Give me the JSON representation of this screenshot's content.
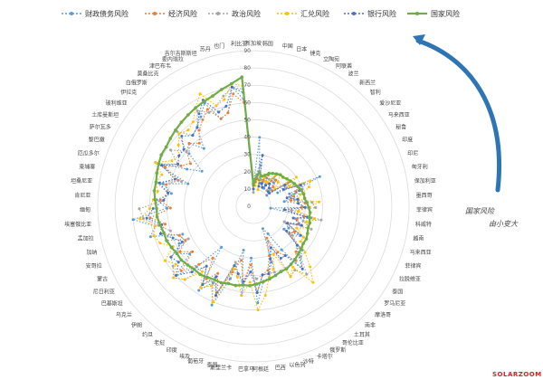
{
  "legend": [
    "财政债务风险",
    "经济风险",
    "政治风险",
    "汇兑风险",
    "银行风险",
    "国家风险"
  ],
  "side_note": [
    "国家风险",
    "由小变大"
  ],
  "watermark": "SOLARZOOM",
  "colors": {
    "series": [
      "#5b9bd5",
      "#ed7d31",
      "#a5a5a5",
      "#ffc000",
      "#4472c4",
      "#70ad47"
    ],
    "grid": "#dcdcdc",
    "arrow": "#2e75b6"
  },
  "chart_data": {
    "type": "radar",
    "rmax": 90,
    "ticks": [
      0,
      10,
      20,
      30,
      40,
      50,
      60,
      70,
      80,
      90
    ],
    "categories": [
      "新加坡",
      "韩国",
      "中国",
      "日本",
      "捷克",
      "立陶宛",
      "阿联酋",
      "波兰",
      "新西兰",
      "智利",
      "爱沙尼亚",
      "马来西亚",
      "秘鲁",
      "印度",
      "印尼",
      "匈牙利",
      "保加利亚",
      "墨西哥",
      "菲律宾",
      "科威特",
      "越南",
      "马来西亚",
      "菲律宾",
      "拉脱维亚",
      "泰国",
      "罗马尼亚",
      "摩洛哥",
      "南非",
      "土耳其",
      "哥伦比亚",
      "俄罗斯",
      "卡塔尔",
      "沙特",
      "以色列",
      "巴西",
      "阿根廷",
      "巴拿马",
      "斯里兰卡",
      "泰国",
      "葡萄牙",
      "埃及",
      "印度",
      "老挝",
      "约旦",
      "伊朗",
      "乌克兰",
      "巴基斯坦",
      "尼日利亚",
      "蒙古",
      "安哥拉",
      "加纳",
      "孟加拉",
      "埃塞俄比亚",
      "缅甸",
      "肯尼亚",
      "坦桑尼亚",
      "柬埔寨",
      "厄瓜多尔",
      "黎巴嫩",
      "萨尔瓦多",
      "土库曼斯坦",
      "玻利维亚",
      "伊拉克",
      "白俄罗斯",
      "莫桑比克",
      "津巴布韦",
      "委内瑞拉",
      "吉尔吉斯斯坦",
      "苏丹",
      "也门",
      "利比亚"
    ],
    "series": [
      {
        "name": "财政债务风险",
        "values": [
          12,
          40,
          20,
          14,
          15,
          18,
          12,
          22,
          18,
          14,
          10,
          26,
          16,
          42,
          22,
          30,
          18,
          26,
          28,
          10,
          34,
          26,
          28,
          20,
          24,
          22,
          38,
          40,
          46,
          30,
          18,
          14,
          34,
          42,
          44,
          56,
          30,
          52,
          26,
          44,
          62,
          50,
          58,
          30,
          48,
          60,
          46,
          52,
          48,
          44,
          62,
          58,
          70,
          50,
          56,
          48,
          54,
          40,
          62,
          44,
          36,
          48,
          52,
          44,
          56,
          60,
          66,
          54,
          56,
          70,
          62
        ]
      },
      {
        "name": "经济风险",
        "values": [
          10,
          14,
          16,
          12,
          16,
          20,
          14,
          18,
          20,
          16,
          14,
          24,
          20,
          30,
          26,
          24,
          22,
          30,
          28,
          18,
          30,
          26,
          30,
          22,
          28,
          26,
          34,
          36,
          40,
          34,
          30,
          20,
          30,
          38,
          40,
          50,
          34,
          44,
          32,
          40,
          54,
          44,
          50,
          38,
          46,
          56,
          44,
          50,
          44,
          46,
          56,
          52,
          60,
          48,
          54,
          50,
          52,
          46,
          56,
          48,
          44,
          50,
          52,
          48,
          54,
          58,
          62,
          54,
          56,
          66,
          60
        ]
      },
      {
        "name": "政治风险",
        "values": [
          8,
          18,
          24,
          16,
          14,
          16,
          18,
          20,
          12,
          14,
          12,
          26,
          22,
          32,
          30,
          22,
          24,
          34,
          36,
          22,
          40,
          30,
          36,
          20,
          34,
          28,
          36,
          40,
          50,
          44,
          46,
          22,
          40,
          40,
          40,
          42,
          38,
          46,
          40,
          34,
          56,
          48,
          54,
          44,
          58,
          62,
          58,
          56,
          42,
          54,
          50,
          56,
          64,
          66,
          52,
          50,
          58,
          44,
          60,
          50,
          58,
          50,
          62,
          54,
          56,
          64,
          60,
          62,
          66,
          70,
          68
        ]
      },
      {
        "name": "汇兑风险",
        "values": [
          14,
          12,
          20,
          10,
          18,
          16,
          16,
          22,
          24,
          20,
          16,
          30,
          24,
          36,
          34,
          28,
          26,
          38,
          32,
          26,
          36,
          32,
          34,
          28,
          34,
          34,
          40,
          48,
          56,
          42,
          46,
          30,
          38,
          42,
          52,
          60,
          44,
          52,
          42,
          38,
          60,
          52,
          56,
          48,
          58,
          62,
          56,
          60,
          52,
          58,
          60,
          58,
          66,
          60,
          58,
          56,
          58,
          56,
          62,
          54,
          52,
          56,
          60,
          58,
          60,
          66,
          72,
          62,
          64,
          72,
          70
        ]
      },
      {
        "name": "银行风险",
        "values": [
          10,
          16,
          30,
          12,
          14,
          12,
          14,
          16,
          14,
          12,
          12,
          22,
          20,
          30,
          28,
          20,
          26,
          26,
          30,
          18,
          32,
          24,
          30,
          22,
          32,
          24,
          34,
          38,
          46,
          34,
          34,
          26,
          32,
          40,
          40,
          50,
          38,
          44,
          40,
          36,
          56,
          46,
          54,
          44,
          52,
          60,
          54,
          56,
          46,
          50,
          56,
          54,
          62,
          58,
          52,
          50,
          56,
          48,
          58,
          50,
          52,
          52,
          58,
          54,
          56,
          62,
          68,
          58,
          60,
          70,
          66
        ]
      },
      {
        "name": "国家风险",
        "values": [
          13,
          16,
          20,
          18,
          19,
          21,
          22,
          23,
          24,
          24,
          25,
          26,
          27,
          28,
          29,
          30,
          30,
          31,
          32,
          33,
          33,
          34,
          34,
          35,
          36,
          36,
          37,
          38,
          39,
          40,
          41,
          41,
          42,
          43,
          44,
          45,
          46,
          46,
          47,
          47,
          48,
          48,
          49,
          50,
          50,
          51,
          52,
          52,
          53,
          54,
          54,
          55,
          56,
          56,
          57,
          58,
          58,
          59,
          60,
          61,
          61,
          62,
          63,
          64,
          65,
          66,
          67,
          68,
          70,
          72,
          75
        ]
      }
    ]
  }
}
